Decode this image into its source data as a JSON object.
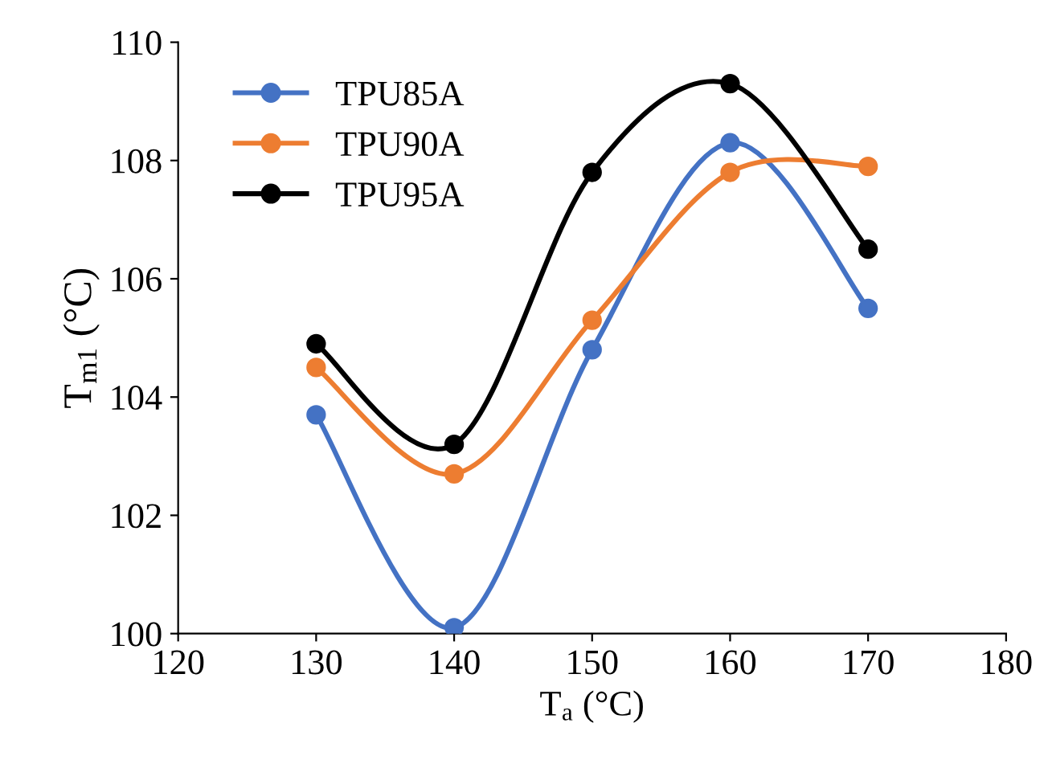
{
  "chart_data": {
    "type": "line",
    "xlabel": "T$_{a}$ (°C)",
    "ylabel": "T$_{m1}$ (°C)",
    "x": [
      130,
      140,
      150,
      160,
      170
    ],
    "series": [
      {
        "name": "TPU85A",
        "color": "#4472c4",
        "values": [
          103.7,
          100.1,
          104.8,
          108.3,
          105.5
        ]
      },
      {
        "name": "TPU90A",
        "color": "#ed7d31",
        "values": [
          104.5,
          102.7,
          105.3,
          107.8,
          107.9
        ]
      },
      {
        "name": "TPU95A",
        "color": "#000000",
        "values": [
          104.9,
          103.2,
          107.8,
          109.3,
          106.5
        ]
      }
    ],
    "xlim": [
      120,
      180
    ],
    "xticks": [
      120,
      130,
      140,
      150,
      160,
      170,
      180
    ],
    "ylim": [
      100,
      110
    ],
    "yticks": [
      100,
      102,
      104,
      106,
      108,
      110
    ],
    "marker": "circle",
    "line_style": "solid",
    "grid": false,
    "legend": "top left"
  }
}
